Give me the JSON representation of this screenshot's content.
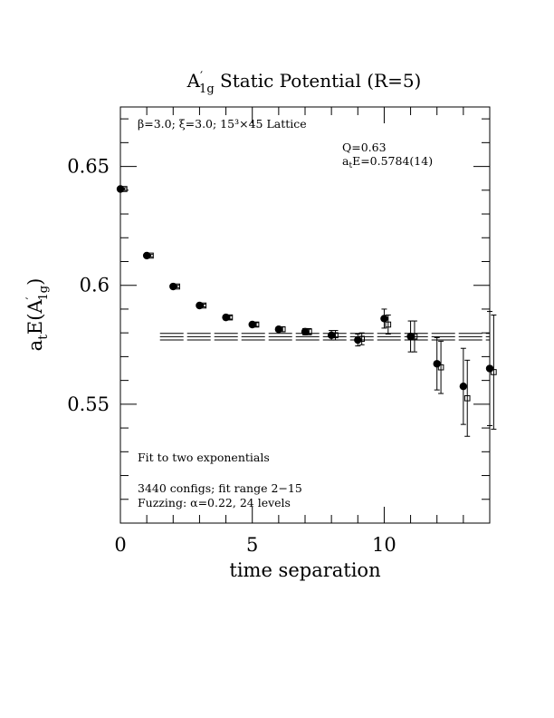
{
  "chart_data": {
    "type": "scatter",
    "title": "A′1g Static Potential (R=5)",
    "title_main": "A",
    "title_prime": "′",
    "title_sub": "1g",
    "title_rest": " Static Potential (R=5)",
    "xlabel": "time separation",
    "ylabel": "atE(A′1g)",
    "ylabel_parts": {
      "a": "a",
      "t_sub": "t",
      "E": "E(A",
      "prime": "′",
      "sub": "1g",
      "close": ")"
    },
    "xlim": [
      0,
      14
    ],
    "ylim": [
      0.5,
      0.675
    ],
    "x_ticks": [
      0,
      5,
      10
    ],
    "x_tick_labels": [
      "0",
      "5",
      "10"
    ],
    "y_ticks": [
      0.55,
      0.6,
      0.65
    ],
    "y_tick_labels": [
      "0.55",
      "0.6",
      "0.65"
    ],
    "annotations": {
      "lattice": "β=3.0; ξ=3.0; 15³×45 Lattice",
      "q_value": "Q=0.63",
      "energy_prefix": "a",
      "energy_sub": "t",
      "energy_rest": "E=0.5784(14)",
      "fit_type": "Fit to two exponentials",
      "configs": "3440 configs; fit range 2−15",
      "fuzzing": "Fuzzing: α=0.22, 24 levels"
    },
    "fit": {
      "value": 0.5784,
      "error": 0.0014,
      "x_start": 1.5,
      "x_end": 14
    },
    "series": [
      {
        "marker": "filled-circle",
        "points": [
          {
            "x": 0,
            "y": 0.6405,
            "err": 0.0005
          },
          {
            "x": 1,
            "y": 0.6125,
            "err": 0.0005
          },
          {
            "x": 2,
            "y": 0.5995,
            "err": 0.0005
          },
          {
            "x": 3,
            "y": 0.5915,
            "err": 0.0006
          },
          {
            "x": 4,
            "y": 0.5865,
            "err": 0.0007
          },
          {
            "x": 5,
            "y": 0.5835,
            "err": 0.0008
          },
          {
            "x": 6,
            "y": 0.5815,
            "err": 0.001
          },
          {
            "x": 7,
            "y": 0.5805,
            "err": 0.0013
          },
          {
            "x": 8,
            "y": 0.579,
            "err": 0.002
          },
          {
            "x": 9,
            "y": 0.577,
            "err": 0.0025
          },
          {
            "x": 10,
            "y": 0.586,
            "err": 0.004
          },
          {
            "x": 11,
            "y": 0.5785,
            "err": 0.0065
          },
          {
            "x": 12,
            "y": 0.567,
            "err": 0.011
          },
          {
            "x": 13,
            "y": 0.5575,
            "err": 0.016
          },
          {
            "x": 14,
            "y": 0.565,
            "err": 0.024
          }
        ]
      },
      {
        "marker": "open-square",
        "points": [
          {
            "x": 0.15,
            "y": 0.6405,
            "err": 0.0005
          },
          {
            "x": 1.15,
            "y": 0.6125,
            "err": 0.0005
          },
          {
            "x": 2.15,
            "y": 0.5995,
            "err": 0.0005
          },
          {
            "x": 3.15,
            "y": 0.5915,
            "err": 0.0006
          },
          {
            "x": 4.15,
            "y": 0.5865,
            "err": 0.0007
          },
          {
            "x": 5.15,
            "y": 0.5835,
            "err": 0.0008
          },
          {
            "x": 6.15,
            "y": 0.5815,
            "err": 0.001
          },
          {
            "x": 7.15,
            "y": 0.5805,
            "err": 0.0013
          },
          {
            "x": 8.15,
            "y": 0.579,
            "err": 0.002
          },
          {
            "x": 9.15,
            "y": 0.5775,
            "err": 0.0025
          },
          {
            "x": 10.15,
            "y": 0.5835,
            "err": 0.004
          },
          {
            "x": 11.15,
            "y": 0.5785,
            "err": 0.0065
          },
          {
            "x": 12.15,
            "y": 0.5655,
            "err": 0.011
          },
          {
            "x": 13.15,
            "y": 0.5525,
            "err": 0.016
          },
          {
            "x": 14.15,
            "y": 0.5635,
            "err": 0.024
          }
        ]
      }
    ]
  }
}
